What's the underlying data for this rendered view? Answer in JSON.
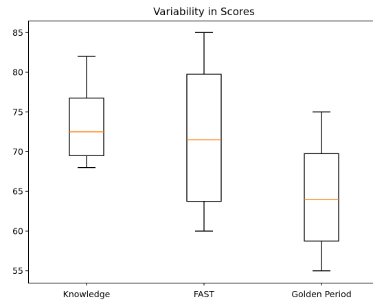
{
  "chart_data": {
    "type": "box",
    "title": "Variability in Scores",
    "xlabel": "",
    "ylabel": "",
    "ylim": [
      53.5,
      86.5
    ],
    "yticks": [
      55,
      60,
      65,
      70,
      75,
      80,
      85
    ],
    "categories": [
      "Knowledge",
      "FAST",
      "Golden Period"
    ],
    "boxes": [
      {
        "category": "Knowledge",
        "whisker_low": 68,
        "q1": 69.5,
        "median": 72.5,
        "q3": 76.75,
        "whisker_high": 82
      },
      {
        "category": "FAST",
        "whisker_low": 60,
        "q1": 63.75,
        "median": 71.5,
        "q3": 79.75,
        "whisker_high": 85
      },
      {
        "category": "Golden Period",
        "whisker_low": 55,
        "q1": 58.75,
        "median": 64,
        "q3": 69.75,
        "whisker_high": 75
      }
    ],
    "grid": false,
    "colors": {
      "box": "#000000",
      "median": "#ff7f0e"
    }
  }
}
